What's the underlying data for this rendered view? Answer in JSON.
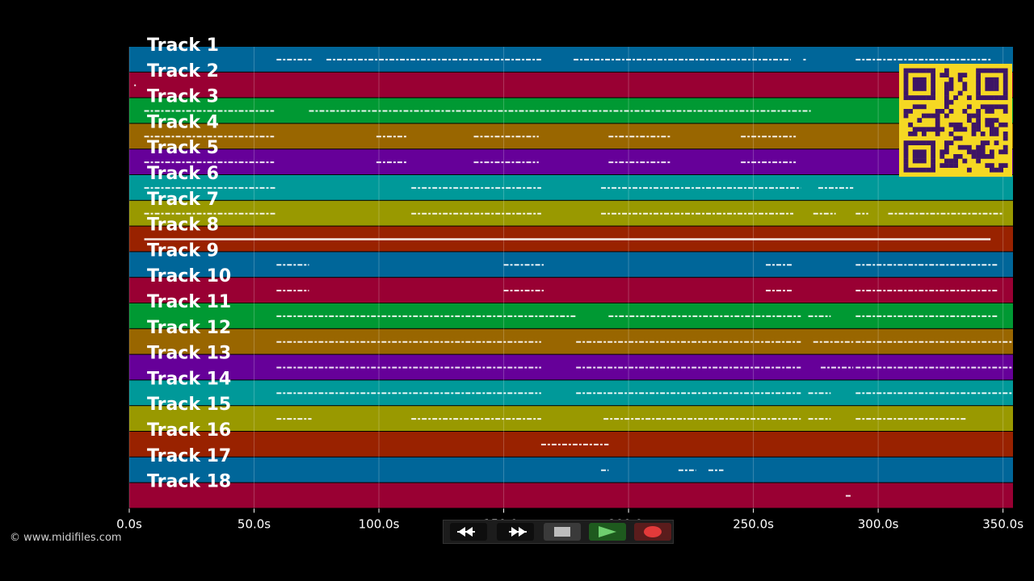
{
  "time_axis": {
    "min": 0,
    "max": 354,
    "ticks": [
      {
        "value": 0,
        "label": "0.0s"
      },
      {
        "value": 50,
        "label": "50.0s"
      },
      {
        "value": 100,
        "label": "100.0s"
      },
      {
        "value": 150,
        "label": "150.0s"
      },
      {
        "value": 200,
        "label": "200.0s"
      },
      {
        "value": 250,
        "label": "250.0s"
      },
      {
        "value": 300,
        "label": "300.0s"
      },
      {
        "value": 350,
        "label": "350.0s"
      }
    ]
  },
  "tracks": [
    {
      "label": "Track 1",
      "color": "#006699",
      "segments": [
        [
          59,
          73
        ],
        [
          79,
          165
        ],
        [
          178,
          265
        ],
        [
          270,
          271
        ],
        [
          291,
          345
        ]
      ]
    },
    {
      "label": "Track 2",
      "color": "#990033",
      "segments": [
        [
          2,
          2.5
        ]
      ]
    },
    {
      "label": "Track 3",
      "color": "#009933",
      "segments": [
        [
          6,
          58
        ],
        [
          72,
          273
        ]
      ]
    },
    {
      "label": "Track 4",
      "color": "#996600",
      "segments": [
        [
          6,
          58
        ],
        [
          99,
          111
        ],
        [
          138,
          164
        ],
        [
          192,
          217
        ],
        [
          245,
          267
        ]
      ]
    },
    {
      "label": "Track 5",
      "color": "#660099",
      "segments": [
        [
          6,
          58
        ],
        [
          99,
          111
        ],
        [
          138,
          164
        ],
        [
          192,
          217
        ],
        [
          245,
          267
        ]
      ]
    },
    {
      "label": "Track 6",
      "color": "#009999",
      "segments": [
        [
          6,
          59
        ],
        [
          113,
          165
        ],
        [
          189,
          269
        ],
        [
          276,
          290
        ]
      ]
    },
    {
      "label": "Track 7",
      "color": "#999900",
      "segments": [
        [
          6,
          59
        ],
        [
          113,
          165
        ],
        [
          189,
          266
        ],
        [
          274,
          283
        ],
        [
          291,
          296
        ],
        [
          304,
          350
        ]
      ]
    },
    {
      "label": "Track 8",
      "color": "#992200",
      "segments": [
        [
          6,
          345
        ]
      ]
    },
    {
      "label": "Track 9",
      "color": "#006699",
      "segments": [
        [
          59,
          72
        ],
        [
          150,
          166
        ],
        [
          255,
          266
        ],
        [
          291,
          348
        ]
      ]
    },
    {
      "label": "Track 10",
      "color": "#990033",
      "segments": [
        [
          59,
          72
        ],
        [
          150,
          166
        ],
        [
          255,
          266
        ],
        [
          291,
          348
        ]
      ]
    },
    {
      "label": "Track 11",
      "color": "#009933",
      "segments": [
        [
          59,
          179
        ],
        [
          192,
          269
        ],
        [
          272,
          281
        ],
        [
          291,
          348
        ]
      ]
    },
    {
      "label": "Track 12",
      "color": "#996600",
      "segments": [
        [
          59,
          165
        ],
        [
          179,
          269
        ],
        [
          274,
          290
        ],
        [
          291,
          354
        ]
      ]
    },
    {
      "label": "Track 13",
      "color": "#660099",
      "segments": [
        [
          59,
          165
        ],
        [
          179,
          269
        ],
        [
          277,
          290
        ],
        [
          291,
          354
        ]
      ]
    },
    {
      "label": "Track 14",
      "color": "#009999",
      "segments": [
        [
          59,
          165
        ],
        [
          179,
          269
        ],
        [
          272,
          281
        ],
        [
          291,
          354
        ]
      ]
    },
    {
      "label": "Track 15",
      "color": "#999900",
      "segments": [
        [
          59,
          73
        ],
        [
          113,
          165
        ],
        [
          190,
          269
        ],
        [
          272,
          281
        ],
        [
          291,
          335
        ]
      ]
    },
    {
      "label": "Track 16",
      "color": "#992200",
      "segments": [
        [
          165,
          192
        ]
      ]
    },
    {
      "label": "Track 17",
      "color": "#006699",
      "segments": [
        [
          189,
          192
        ],
        [
          220,
          227
        ],
        [
          232,
          238
        ]
      ]
    },
    {
      "label": "Track 18",
      "color": "#990033",
      "segments": [
        [
          287,
          289
        ]
      ]
    }
  ],
  "footer": {
    "copyright": "© www.midifiles.com"
  },
  "transport": {
    "rewind": "rewind-icon",
    "fast_forward": "fast-forward-icon",
    "stop": "stop-icon",
    "play": "play-icon",
    "record": "record-icon"
  },
  "qr": {
    "fg": "#3d1566",
    "bg": "#f5d823"
  }
}
